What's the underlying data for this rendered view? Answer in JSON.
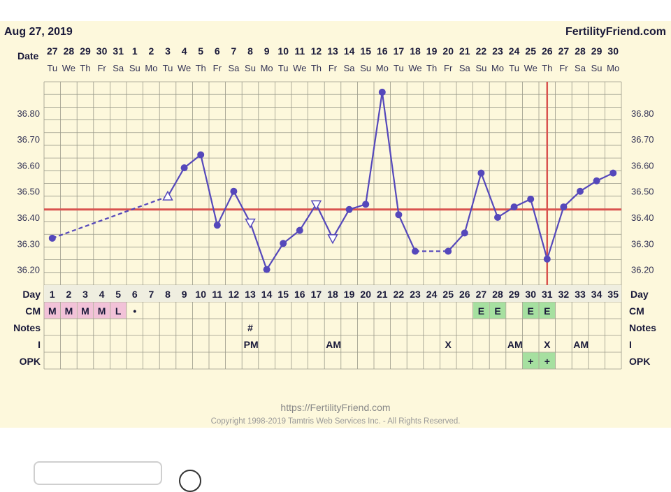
{
  "header": {
    "date": "Aug 27, 2019",
    "site": "FertilityFriend.com",
    "date_row_label": "Date"
  },
  "footer": {
    "url": "https://FertilityFriend.com",
    "copyright": "Copyright 1998-2019 Tamtris Web Services Inc. - All Rights Reserved."
  },
  "colors": {
    "line": "#5548bb",
    "coverline": "#d9534f",
    "grid": "#9a9a8a",
    "cm_menses": "#f2c2d8",
    "cm_egg": "#a6e0a0",
    "panel": "#fdf8dc"
  },
  "chart_data": {
    "type": "line",
    "title": "",
    "y_ticks": [
      "36.80",
      "36.70",
      "36.60",
      "36.50",
      "36.40",
      "36.30",
      "36.20"
    ],
    "ylim": [
      36.14,
      36.92
    ],
    "coverline": 36.43,
    "ovulation_day": 31,
    "x_dates": [
      "27",
      "28",
      "29",
      "30",
      "31",
      "1",
      "2",
      "3",
      "4",
      "5",
      "6",
      "7",
      "8",
      "9",
      "10",
      "11",
      "12",
      "13",
      "14",
      "15",
      "16",
      "17",
      "18",
      "19",
      "20",
      "21",
      "22",
      "23",
      "24",
      "25",
      "26",
      "27",
      "28",
      "29",
      "30"
    ],
    "x_dow": [
      "Tu",
      "We",
      "Th",
      "Fr",
      "Sa",
      "Su",
      "Mo",
      "Tu",
      "We",
      "Th",
      "Fr",
      "Sa",
      "Su",
      "Mo",
      "Tu",
      "We",
      "Th",
      "Fr",
      "Sa",
      "Su",
      "Mo",
      "Tu",
      "We",
      "Th",
      "Fr",
      "Sa",
      "Su",
      "Mo",
      "Tu",
      "We",
      "Th",
      "Fr",
      "Sa",
      "Su",
      "Mo"
    ],
    "cycle_days": [
      "1",
      "2",
      "3",
      "4",
      "5",
      "6",
      "7",
      "8",
      "9",
      "10",
      "11",
      "12",
      "13",
      "14",
      "15",
      "16",
      "17",
      "18",
      "19",
      "20",
      "21",
      "22",
      "23",
      "24",
      "25",
      "26",
      "27",
      "28",
      "29",
      "30",
      "31",
      "32",
      "33",
      "34",
      "35"
    ],
    "temps": [
      {
        "day": 1,
        "temp": 36.32,
        "marker": "dot"
      },
      {
        "day": 8,
        "temp": 36.48,
        "marker": "tri-up"
      },
      {
        "day": 9,
        "temp": 36.59,
        "marker": "dot"
      },
      {
        "day": 10,
        "temp": 36.64,
        "marker": "dot"
      },
      {
        "day": 11,
        "temp": 36.37,
        "marker": "dot"
      },
      {
        "day": 12,
        "temp": 36.5,
        "marker": "dot"
      },
      {
        "day": 13,
        "temp": 36.38,
        "marker": "tri-down"
      },
      {
        "day": 14,
        "temp": 36.2,
        "marker": "dot"
      },
      {
        "day": 15,
        "temp": 36.3,
        "marker": "dot"
      },
      {
        "day": 16,
        "temp": 36.35,
        "marker": "dot"
      },
      {
        "day": 17,
        "temp": 36.45,
        "marker": "tri-down"
      },
      {
        "day": 18,
        "temp": 36.32,
        "marker": "tri-down"
      },
      {
        "day": 19,
        "temp": 36.43,
        "marker": "dot"
      },
      {
        "day": 20,
        "temp": 36.45,
        "marker": "dot"
      },
      {
        "day": 21,
        "temp": 36.88,
        "marker": "dot"
      },
      {
        "day": 22,
        "temp": 36.41,
        "marker": "dot"
      },
      {
        "day": 23,
        "temp": 36.27,
        "marker": "dot"
      },
      {
        "day": 25,
        "temp": 36.27,
        "marker": "dot"
      },
      {
        "day": 26,
        "temp": 36.34,
        "marker": "dot"
      },
      {
        "day": 27,
        "temp": 36.57,
        "marker": "dot"
      },
      {
        "day": 28,
        "temp": 36.4,
        "marker": "dot"
      },
      {
        "day": 29,
        "temp": 36.44,
        "marker": "dot"
      },
      {
        "day": 30,
        "temp": 36.47,
        "marker": "dot"
      },
      {
        "day": 31,
        "temp": 36.24,
        "marker": "dot"
      },
      {
        "day": 32,
        "temp": 36.44,
        "marker": "dot"
      },
      {
        "day": 33,
        "temp": 36.5,
        "marker": "dot"
      },
      {
        "day": 34,
        "temp": 36.54,
        "marker": "dot"
      },
      {
        "day": 35,
        "temp": 36.57,
        "marker": "dot"
      }
    ],
    "dashed_segments": [
      [
        1,
        8
      ],
      [
        23,
        25
      ]
    ],
    "rows": [
      {
        "label": "CM",
        "cells": {
          "1": "M",
          "2": "M",
          "3": "M",
          "4": "M",
          "5": "L",
          "6": "•",
          "27": "E",
          "28": "E",
          "30": "E",
          "31": "E"
        },
        "highlight": {
          "1": "menses",
          "2": "menses",
          "3": "menses",
          "4": "menses",
          "5": "menses",
          "27": "egg",
          "28": "egg",
          "30": "egg",
          "31": "egg"
        }
      },
      {
        "label": "Notes",
        "cells": {
          "13": "#"
        },
        "highlight": {}
      },
      {
        "label": "I",
        "cells": {
          "13": "PM",
          "18": "AM",
          "25": "X",
          "29": "AM",
          "31": "X",
          "33": "AM"
        },
        "highlight": {}
      },
      {
        "label": "OPK",
        "cells": {
          "30": "+",
          "31": "+"
        },
        "highlight": {
          "30": "egg",
          "31": "egg"
        }
      }
    ],
    "day_row_label": "Day"
  }
}
